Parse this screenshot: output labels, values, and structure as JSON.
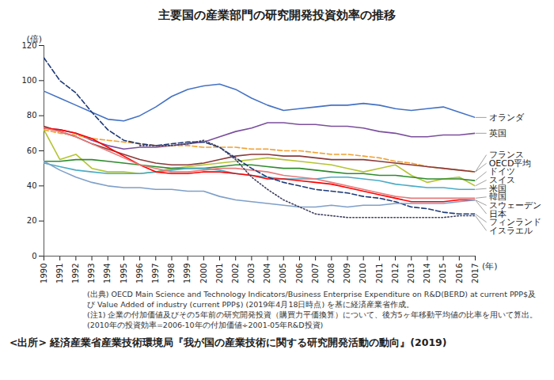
{
  "chart_data": {
    "type": "line",
    "title": "主要国の産業部門の研究開発投資効率の推移",
    "y_label": "(倍)",
    "x_label": "(年)",
    "x": [
      1990,
      1991,
      1992,
      1993,
      1994,
      1995,
      1996,
      1997,
      1998,
      1999,
      2000,
      2001,
      2002,
      2003,
      2004,
      2005,
      2006,
      2007,
      2008,
      2009,
      2010,
      2011,
      2012,
      2013,
      2014,
      2015,
      2016,
      2017
    ],
    "xlim": [
      1990,
      2017
    ],
    "xticks": [
      1990,
      1991,
      1992,
      1993,
      1994,
      1995,
      1996,
      1997,
      1998,
      1999,
      2000,
      2001,
      2002,
      2003,
      2004,
      2005,
      2006,
      2007,
      2008,
      2009,
      2010,
      2011,
      2012,
      2013,
      2014,
      2015,
      2016,
      2017
    ],
    "ylim": [
      0,
      120
    ],
    "yticks": [
      0,
      20,
      40,
      60,
      80,
      100,
      120
    ],
    "grid": false,
    "series": [
      {
        "name": "オランダ",
        "color": "#4472c4",
        "line_style": "solid",
        "values": [
          94,
          90,
          86,
          82,
          78,
          77,
          80,
          85,
          91,
          95,
          97,
          98,
          95,
          90,
          86,
          83,
          84,
          85,
          86,
          86,
          87,
          86,
          84,
          83,
          84,
          85,
          82,
          79
        ]
      },
      {
        "name": "英国",
        "color": "#7b4f9d",
        "line_style": "solid",
        "values": [
          73,
          72,
          70,
          66,
          63,
          61,
          62,
          62,
          63,
          64,
          65,
          68,
          71,
          73,
          76,
          76,
          75,
          75,
          74,
          74,
          73,
          71,
          70,
          68,
          68,
          69,
          69,
          70
        ]
      },
      {
        "name": "OECD平均",
        "color": "#f0a030",
        "line_style": "dashed",
        "values": [
          72,
          70,
          69,
          67,
          66,
          65,
          64,
          63,
          63,
          63,
          62,
          62,
          62,
          61,
          61,
          60,
          60,
          59,
          58,
          58,
          57,
          56,
          54,
          53,
          51,
          50,
          49,
          48
        ]
      },
      {
        "name": "フランス",
        "color": "#8b3a3a",
        "line_style": "solid",
        "values": [
          74,
          71,
          68,
          64,
          61,
          58,
          55,
          53,
          52,
          52,
          53,
          55,
          57,
          58,
          58,
          57,
          57,
          56,
          55,
          55,
          55,
          54,
          53,
          52,
          51,
          50,
          49,
          48
        ]
      },
      {
        "name": "スイス",
        "color": "#b5c433",
        "line_style": "solid",
        "values": [
          72,
          55,
          58,
          50,
          48,
          48,
          47,
          48,
          50,
          51,
          52,
          53,
          54,
          55,
          56,
          55,
          54,
          53,
          52,
          50,
          48,
          50,
          52,
          46,
          42,
          44,
          45,
          40
        ]
      },
      {
        "name": "ドイツ",
        "color": "#2e8b2e",
        "line_style": "solid",
        "values": [
          54,
          54,
          55,
          55,
          54,
          53,
          52,
          51,
          50,
          50,
          50,
          51,
          52,
          52,
          51,
          50,
          50,
          49,
          48,
          47,
          47,
          46,
          46,
          45,
          44,
          44,
          44,
          43
        ]
      },
      {
        "name": "米国",
        "color": "#4bacc6",
        "line_style": "solid",
        "values": [
          53,
          51,
          49,
          48,
          47,
          47,
          47,
          48,
          49,
          50,
          50,
          49,
          47,
          46,
          45,
          44,
          44,
          44,
          45,
          45,
          44,
          43,
          41,
          40,
          39,
          39,
          38,
          38
        ]
      },
      {
        "name": "日本",
        "color": "#ff0000",
        "line_style": "solid",
        "values": [
          73,
          72,
          70,
          67,
          62,
          57,
          52,
          48,
          47,
          47,
          48,
          48,
          47,
          46,
          44,
          44,
          43,
          42,
          41,
          39,
          37,
          35,
          33,
          31,
          31,
          31,
          32,
          32
        ]
      },
      {
        "name": "韓国",
        "color": "#e67a7a",
        "line_style": "solid",
        "values": [
          73,
          71,
          68,
          64,
          60,
          56,
          52,
          50,
          48,
          48,
          49,
          50,
          50,
          49,
          48,
          46,
          45,
          44,
          42,
          40,
          38,
          36,
          34,
          33,
          33,
          33,
          33,
          33
        ]
      },
      {
        "name": "フィンランド",
        "color": "#1f3a78",
        "line_style": "dashed",
        "values": [
          113,
          100,
          93,
          82,
          72,
          66,
          64,
          63,
          64,
          65,
          65,
          62,
          56,
          50,
          45,
          42,
          40,
          38,
          37,
          36,
          34,
          33,
          31,
          28,
          27,
          25,
          24,
          24
        ]
      },
      {
        "name": "スウェーデン",
        "color": "#7f9fc8",
        "line_style": "solid",
        "values": [
          54,
          49,
          45,
          42,
          40,
          39,
          39,
          38,
          38,
          37,
          37,
          34,
          32,
          31,
          30,
          29,
          28,
          28,
          29,
          28,
          29,
          29,
          30,
          30,
          30,
          30,
          31,
          32
        ]
      },
      {
        "name": "イスラエル",
        "color": "#404060",
        "line_style": "dotted",
        "values": [
          null,
          null,
          null,
          null,
          null,
          null,
          63,
          63,
          63,
          64,
          66,
          62,
          55,
          45,
          38,
          32,
          28,
          24,
          23,
          22,
          22,
          22,
          22,
          22,
          22,
          22,
          23,
          23
        ]
      }
    ],
    "notes": [
      "(出典) OECD Main Science and Technology Indicators/Business Enterprise Expenditure on R&D(BERD) at current PPP$及び Value Added of industry (current PPP$) (2019年4月18日時点) を基に経済産業省作成。",
      "(注1) 企業の付加価値及びその5年前の研究開発投資（購買力平価換算）について、後方5ヶ年移動平均値の比率を用いて算出。",
      "(2010年の投資効率=2006-10年の付加価値÷2001-05年R&D投資)"
    ],
    "source": "<出所> 経済産業省産業技術環境局『我が国の産業技術に関する研究開発活動の動向』(2019)"
  }
}
